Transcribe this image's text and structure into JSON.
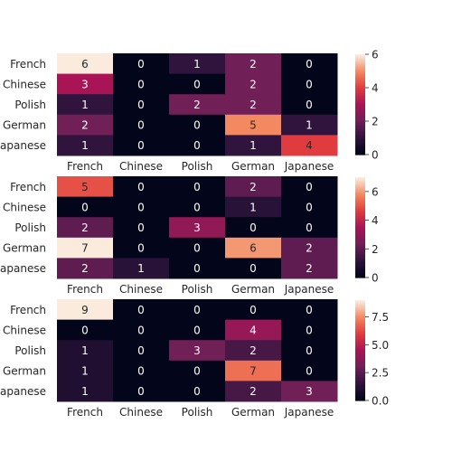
{
  "chart_data": [
    {
      "type": "heatmap",
      "rows": [
        "French",
        "Chinese",
        "Polish",
        "German",
        "Japanese"
      ],
      "columns": [
        "French",
        "Chinese",
        "Polish",
        "German",
        "Japanese"
      ],
      "values": [
        [
          6,
          0,
          1,
          2,
          0
        ],
        [
          3,
          0,
          0,
          2,
          0
        ],
        [
          1,
          0,
          2,
          2,
          0
        ],
        [
          2,
          0,
          0,
          5,
          1
        ],
        [
          1,
          0,
          0,
          1,
          4
        ]
      ],
      "vmin": 0,
      "vmax": 6,
      "colorbar_ticks": [
        "0",
        "2",
        "4",
        "6"
      ],
      "colormap": "rocket"
    },
    {
      "type": "heatmap",
      "rows": [
        "French",
        "Chinese",
        "Polish",
        "German",
        "Japanese"
      ],
      "columns": [
        "French",
        "Chinese",
        "Polish",
        "German",
        "Japanese"
      ],
      "values": [
        [
          5,
          0,
          0,
          2,
          0
        ],
        [
          0,
          0,
          0,
          1,
          0
        ],
        [
          2,
          0,
          3,
          0,
          0
        ],
        [
          7,
          0,
          0,
          6,
          2
        ],
        [
          2,
          1,
          0,
          0,
          2
        ]
      ],
      "vmin": 0,
      "vmax": 7,
      "colorbar_ticks": [
        "0",
        "2",
        "4",
        "6"
      ],
      "colormap": "rocket"
    },
    {
      "type": "heatmap",
      "rows": [
        "French",
        "Chinese",
        "Polish",
        "German",
        "Japanese"
      ],
      "columns": [
        "French",
        "Chinese",
        "Polish",
        "German",
        "Japanese"
      ],
      "values": [
        [
          9,
          0,
          0,
          0,
          0
        ],
        [
          0,
          0,
          0,
          4,
          0
        ],
        [
          1,
          0,
          3,
          2,
          0
        ],
        [
          1,
          0,
          0,
          7,
          0
        ],
        [
          1,
          0,
          0,
          2,
          3
        ]
      ],
      "vmin": 0,
      "vmax": 9,
      "colorbar_ticks": [
        "0.0",
        "2.5",
        "5.0",
        "7.5"
      ],
      "colormap": "rocket"
    }
  ]
}
